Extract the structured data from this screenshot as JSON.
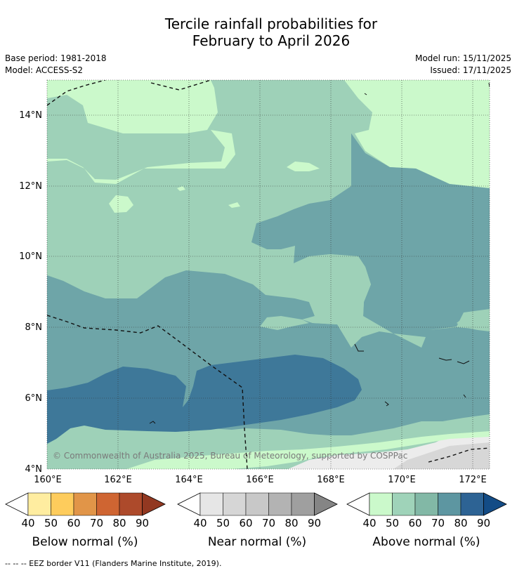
{
  "title": {
    "line1": "Tercile rainfall probabilities for",
    "line2": "February to April 2026"
  },
  "meta": {
    "base_period": "Base period: 1981-2018",
    "model": "Model: ACCESS-S2",
    "model_run": "Model run: 15/11/2025",
    "issued": "Issued: 17/11/2025"
  },
  "map": {
    "lat_labels": [
      "14°N",
      "12°N",
      "10°N",
      "8°N",
      "6°N",
      "4°N"
    ],
    "lon_labels": [
      "160°E",
      "162°E",
      "164°E",
      "166°E",
      "168°E",
      "170°E",
      "172°E"
    ],
    "copyright": "© Commonwealth of Australia 2025, Bureau of Meteorology, supported by COSPPac",
    "colors": {
      "ocean_40_50": "#9ed1b8",
      "ocean_50_60": "#cbf9cb",
      "ocean_60_70": "#6ea5a8",
      "ocean_70_80": "#3e7899",
      "near_normal_light": "#ececec",
      "near_normal_mid": "#d7d7d7"
    }
  },
  "colorbars": {
    "below": {
      "title": "Below normal (%)",
      "ticks": [
        "40",
        "50",
        "60",
        "70",
        "80",
        "90"
      ],
      "colors": [
        "#ffeda0",
        "#fecc5c",
        "#e19548",
        "#cf6532",
        "#ad4a2b",
        "#923821"
      ]
    },
    "near": {
      "title": "Near normal (%)",
      "ticks": [
        "40",
        "50",
        "60",
        "70",
        "80",
        "90"
      ],
      "colors": [
        "#e6e6e6",
        "#d6d6d6",
        "#c8c8c8",
        "#b3b3b3",
        "#9f9f9f",
        "#858585"
      ]
    },
    "above": {
      "title": "Above normal (%)",
      "ticks": [
        "40",
        "50",
        "60",
        "70",
        "80",
        "90"
      ],
      "colors": [
        "#cbf9cb",
        "#9fd3b9",
        "#82b8a6",
        "#5d96a1",
        "#2d6394",
        "#134c86"
      ]
    }
  },
  "footer": {
    "legend": "--  --  -- EEZ border V11 (Flanders Marine Institute, 2019)."
  }
}
